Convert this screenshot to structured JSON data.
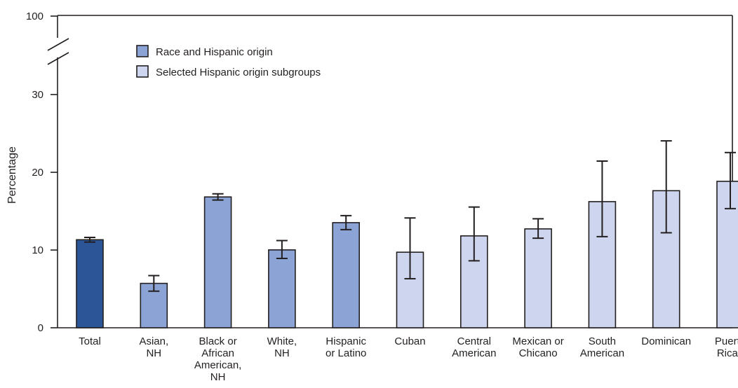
{
  "chart_data": {
    "type": "bar",
    "ylabel": "Percentage",
    "y_ticks": [
      "0",
      "10",
      "20",
      "30",
      "100"
    ],
    "axis_break": "between 30 and 100",
    "categories": [
      "Total",
      "Asian, NH",
      "Black or African American, NH",
      "White, NH",
      "Hispanic or Latino",
      "Cuban",
      "Central American",
      "Mexican or Chicano",
      "South American",
      "Dominican",
      "Puerto Rican"
    ],
    "category_lines": [
      [
        "Total"
      ],
      [
        "Asian,",
        "NH"
      ],
      [
        "Black or",
        "African",
        "American,",
        "NH"
      ],
      [
        "White,",
        "NH"
      ],
      [
        "Hispanic",
        "or Latino"
      ],
      [
        "Cuban"
      ],
      [
        "Central",
        "American"
      ],
      [
        "Mexican or",
        "Chicano"
      ],
      [
        "South",
        "American"
      ],
      [
        "Dominican"
      ],
      [
        "Puerto",
        "Rican"
      ]
    ],
    "values": [
      11.3,
      5.7,
      16.8,
      10.0,
      13.5,
      9.7,
      11.8,
      12.7,
      16.2,
      17.6,
      18.8
    ],
    "ci_lower": [
      11.0,
      4.7,
      16.4,
      8.9,
      12.6,
      6.3,
      8.6,
      11.5,
      11.7,
      12.2,
      15.3
    ],
    "ci_upper": [
      11.6,
      6.7,
      17.2,
      11.2,
      14.4,
      14.1,
      15.5,
      14.0,
      21.4,
      24.0,
      22.5
    ],
    "group_index": [
      0,
      1,
      1,
      1,
      1,
      2,
      2,
      2,
      2,
      2,
      2
    ],
    "legend": [
      {
        "label": "Race and Hispanic origin",
        "group": 1
      },
      {
        "label": "Selected Hispanic origin subgroups",
        "group": 2
      }
    ],
    "colors": {
      "total": "#2b5597",
      "race": "#8ca3d5",
      "subgroup": "#cdd6ee",
      "outline": "#231f20"
    },
    "legend_position": "top-left",
    "grid": false
  }
}
